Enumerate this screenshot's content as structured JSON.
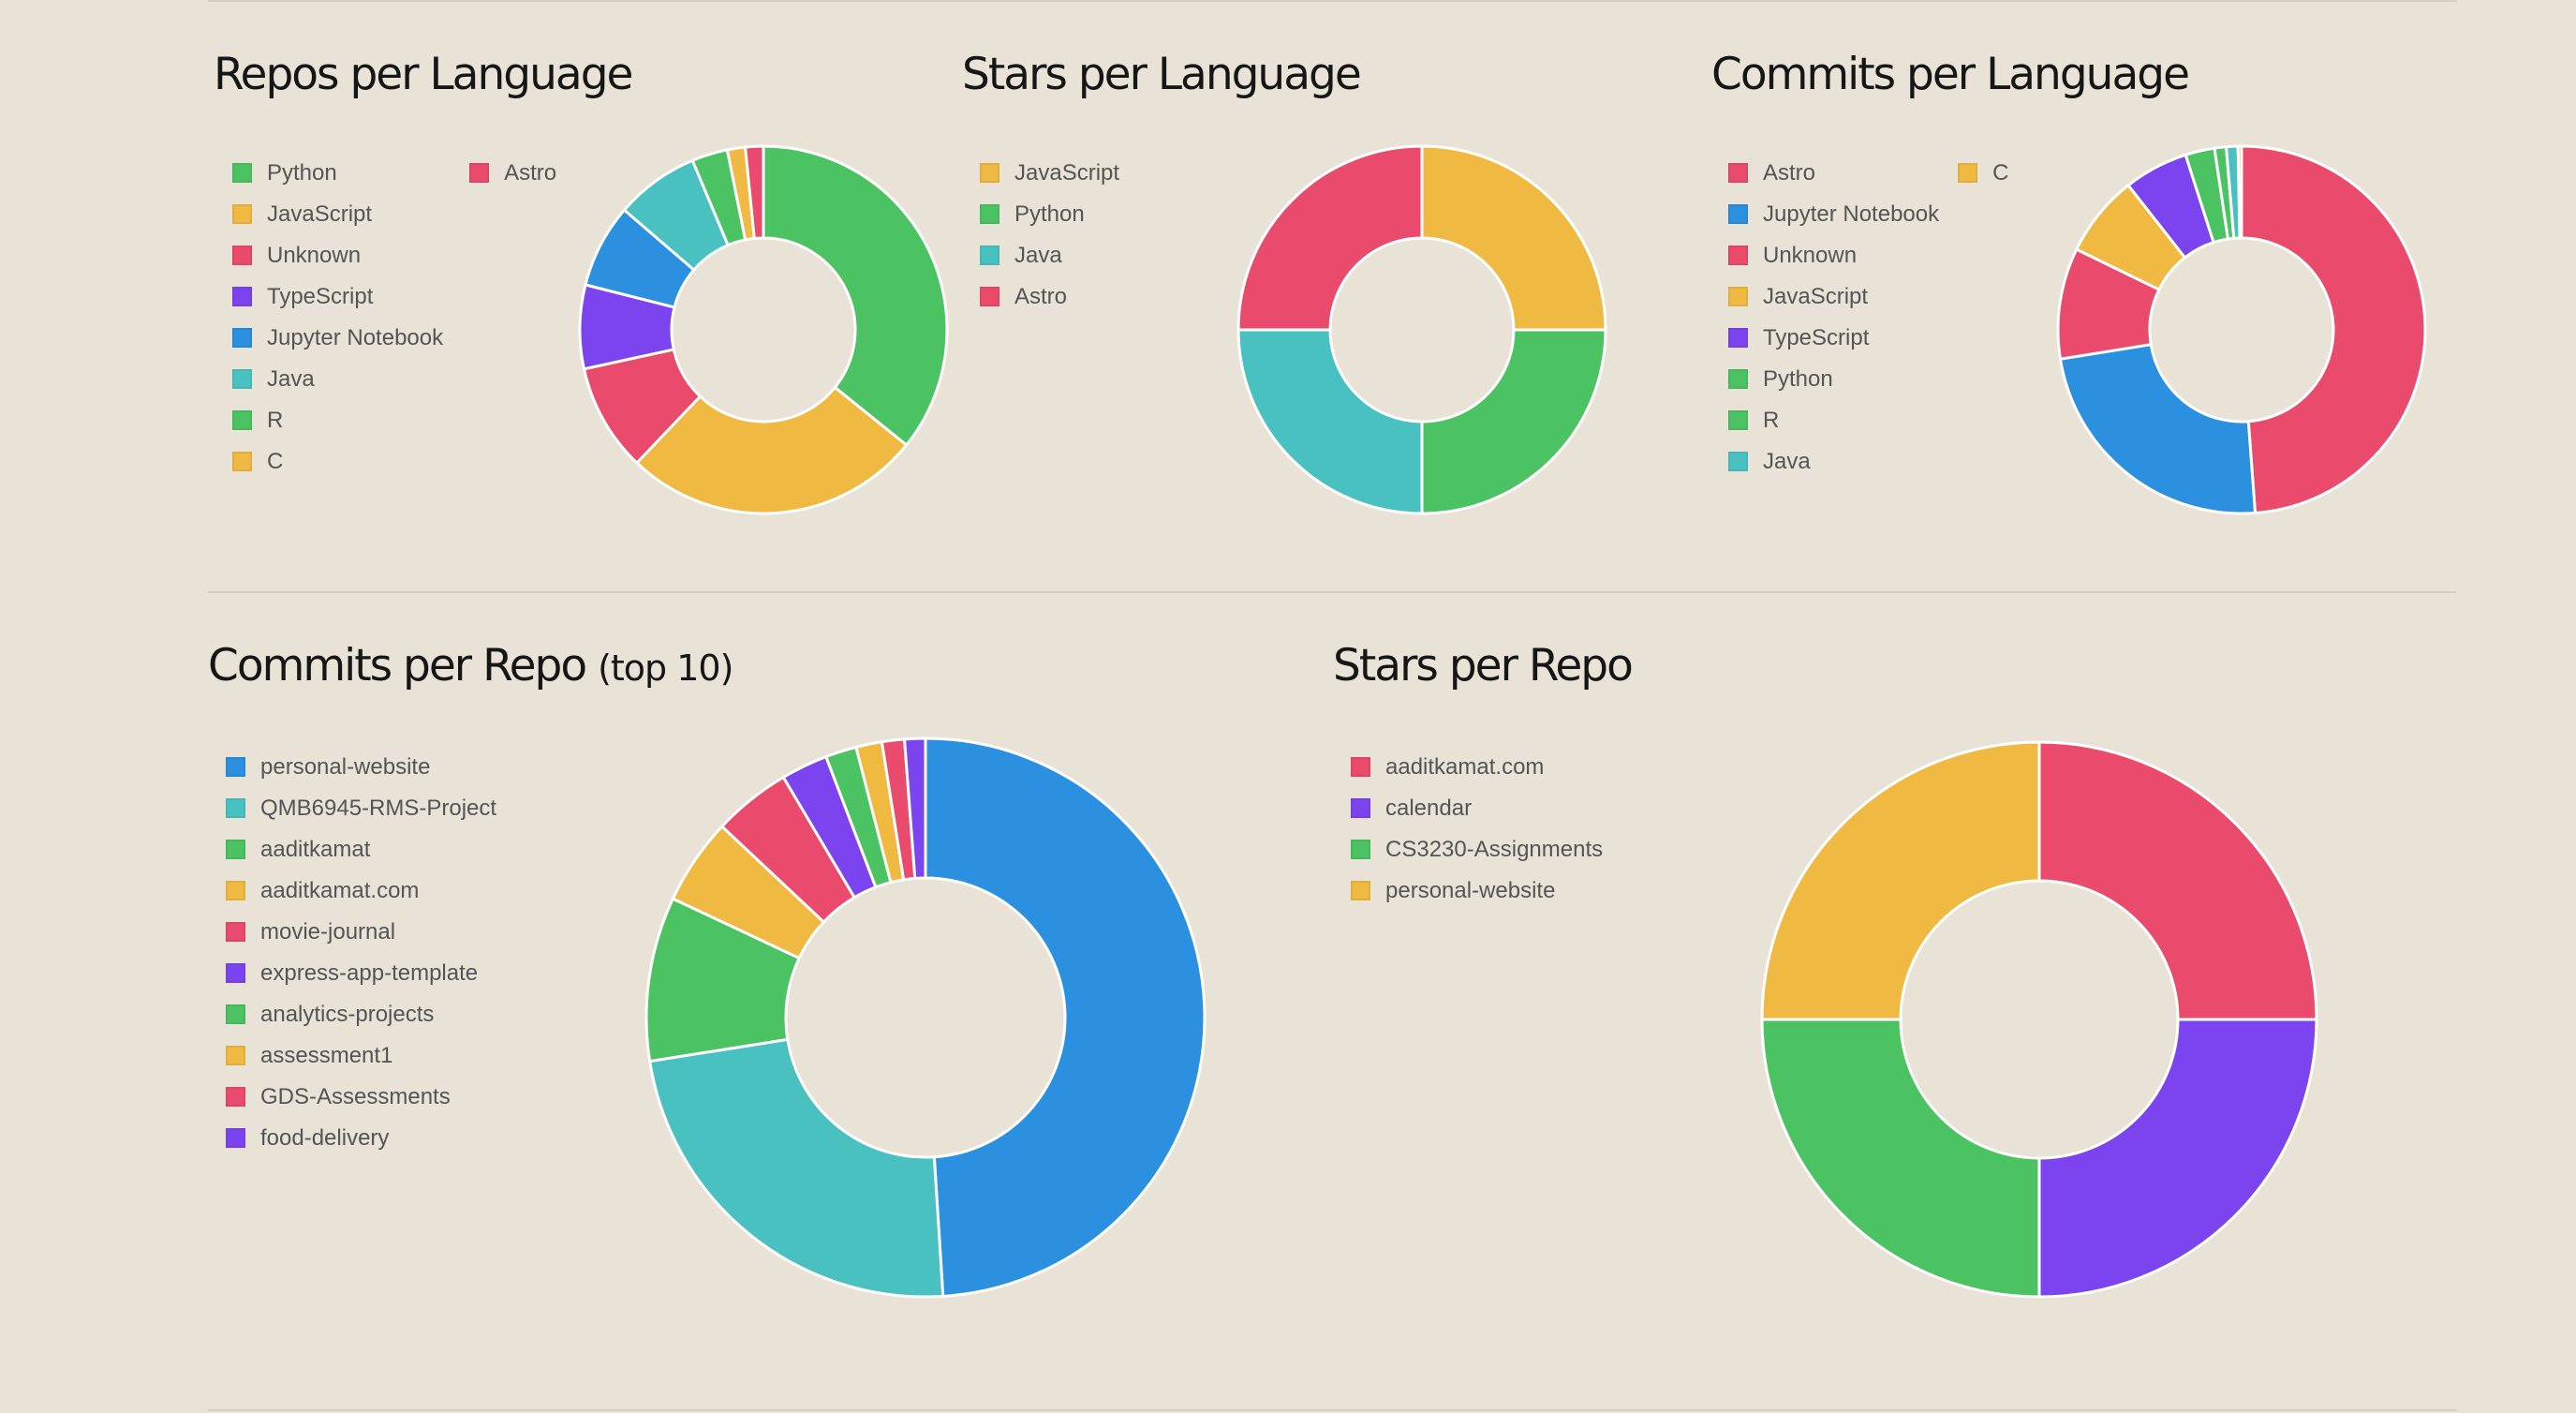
{
  "palette": {
    "green": "#4bc363",
    "yellow": "#f0b942",
    "red": "#ea4a6c",
    "purple": "#7c44ee",
    "blue": "#2b90e0",
    "teal": "#4ac1c1"
  },
  "chart_data": [
    {
      "type": "pie",
      "title": "Repos per Language",
      "hole": 0.5,
      "legend_position": "left",
      "categories": [
        "Python",
        "JavaScript",
        "Unknown",
        "TypeScript",
        "Jupyter Notebook",
        "Java",
        "R",
        "C",
        "Astro"
      ],
      "values": [
        34,
        25,
        9,
        7,
        7,
        7,
        3,
        1.5,
        1.5
      ],
      "colors": [
        "#4bc363",
        "#f0b942",
        "#ea4a6c",
        "#7c44ee",
        "#2b90e0",
        "#4ac1c1",
        "#4bc363",
        "#f0b942",
        "#ea4a6c"
      ]
    },
    {
      "type": "pie",
      "title": "Stars per Language",
      "hole": 0.5,
      "legend_position": "left",
      "categories": [
        "JavaScript",
        "Python",
        "Java",
        "Astro"
      ],
      "values": [
        25,
        25,
        25,
        25
      ],
      "colors": [
        "#f0b942",
        "#4bc363",
        "#4ac1c1",
        "#ea4a6c"
      ]
    },
    {
      "type": "pie",
      "title": "Commits per Language",
      "hole": 0.5,
      "legend_position": "left",
      "categories": [
        "Astro",
        "Jupyter Notebook",
        "Unknown",
        "JavaScript",
        "TypeScript",
        "Python",
        "R",
        "Java",
        "C"
      ],
      "values": [
        47.5,
        23,
        9.5,
        7,
        5.5,
        2.5,
        1,
        1,
        0.3
      ],
      "colors": [
        "#ea4a6c",
        "#2b90e0",
        "#ea4a6c",
        "#f0b942",
        "#7c44ee",
        "#4bc363",
        "#4bc363",
        "#4ac1c1",
        "#f0b942"
      ]
    },
    {
      "type": "pie",
      "title": "Commits per Repo",
      "title_suffix": "(top 10)",
      "hole": 0.5,
      "legend_position": "left",
      "categories": [
        "personal-website",
        "QMB6945-RMS-Project",
        "aaditkamat",
        "aaditkamat.com",
        "movie-journal",
        "express-app-template",
        "analytics-projects",
        "assessment1",
        "GDS-Assessments",
        "food-delivery"
      ],
      "values": [
        49,
        23.5,
        9.5,
        5,
        4.5,
        2.7,
        1.8,
        1.5,
        1.3,
        1.2
      ],
      "colors": [
        "#2b90e0",
        "#4ac1c1",
        "#4bc363",
        "#f0b942",
        "#ea4a6c",
        "#7c44ee",
        "#4bc363",
        "#f0b942",
        "#ea4a6c",
        "#7c44ee"
      ]
    },
    {
      "type": "pie",
      "title": "Stars per Repo",
      "hole": 0.5,
      "legend_position": "left",
      "categories": [
        "aaditkamat.com",
        "calendar",
        "CS3230-Assignments",
        "personal-website"
      ],
      "values": [
        25,
        25,
        25,
        25
      ],
      "colors": [
        "#ea4a6c",
        "#7c44ee",
        "#4bc363",
        "#f0b942"
      ]
    }
  ]
}
